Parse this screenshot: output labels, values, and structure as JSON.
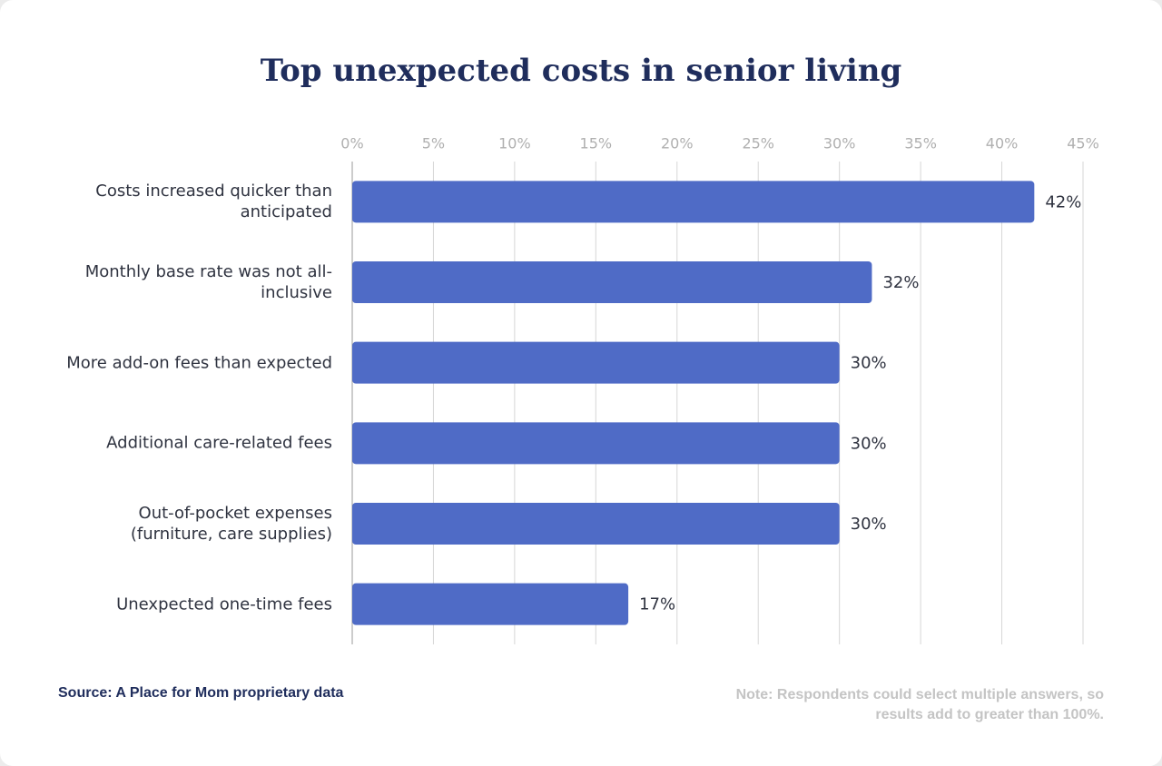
{
  "chart_data": {
    "type": "bar",
    "orientation": "horizontal",
    "title": "Top unexpected costs in senior living",
    "categories": [
      "Costs increased quicker than anticipated",
      "Monthly base rate was not all-inclusive",
      "More add-on fees than expected",
      "Additional care-related fees",
      "Out-of-pocket expenses (furniture, care supplies)",
      "Unexpected one-time fees"
    ],
    "values": [
      42,
      32,
      30,
      30,
      30,
      17
    ],
    "value_labels": [
      "42%",
      "32%",
      "30%",
      "30%",
      "30%",
      "17%"
    ],
    "color": "#4f6bc6",
    "xlim": [
      0,
      45
    ],
    "xticks": [
      {
        "value": 0,
        "label": "0%"
      },
      {
        "value": 5,
        "label": "5%"
      },
      {
        "value": 10,
        "label": "10%"
      },
      {
        "value": 15,
        "label": "15%"
      },
      {
        "value": 20,
        "label": "20%"
      },
      {
        "value": 25,
        "label": "25%"
      },
      {
        "value": 30,
        "label": "30%"
      },
      {
        "value": 35,
        "label": "35%"
      },
      {
        "value": 40,
        "label": "40%"
      },
      {
        "value": 45,
        "label": "45%"
      }
    ],
    "grid": true,
    "source": "Source: A Place for Mom proprietary data",
    "note": "Note: Respondents could select multiple answers, so results add to greater than 100%."
  }
}
